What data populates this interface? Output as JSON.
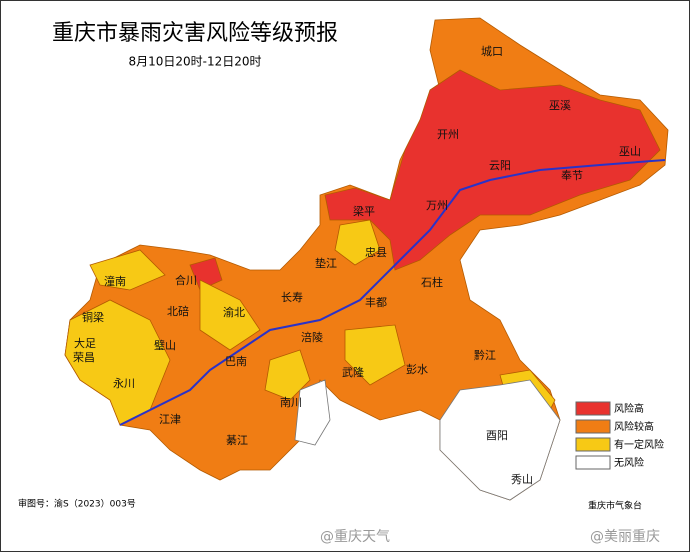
{
  "header": {
    "title": "重庆市暴雨灾害风险等级预报",
    "subtitle": "8月10日20时-12日20时"
  },
  "legend": [
    {
      "label": "风险高",
      "color": "#e8322e"
    },
    {
      "label": "风险较高",
      "color": "#f07d14"
    },
    {
      "label": "有一定风险",
      "color": "#f7c915"
    },
    {
      "label": "无风险",
      "color": "#ffffff"
    }
  ],
  "districts": [
    "城口",
    "巫溪",
    "开州",
    "巫山",
    "云阳",
    "奉节",
    "梁平",
    "万州",
    "垫江",
    "忠县",
    "石柱",
    "潼南",
    "合川",
    "铜梁",
    "北碚",
    "渝北",
    "大足",
    "荣昌",
    "璧山",
    "长寿",
    "涪陵",
    "丰都",
    "永川",
    "江津",
    "巴南",
    "南川",
    "武隆",
    "彭水",
    "黔江",
    "酉阳",
    "秀山",
    "綦江"
  ],
  "footer": {
    "map_number": "审图号：渝S（2023）003号",
    "issuer": "重庆市气象台"
  },
  "watermarks": [
    "@重庆天气",
    "@美丽重庆"
  ]
}
